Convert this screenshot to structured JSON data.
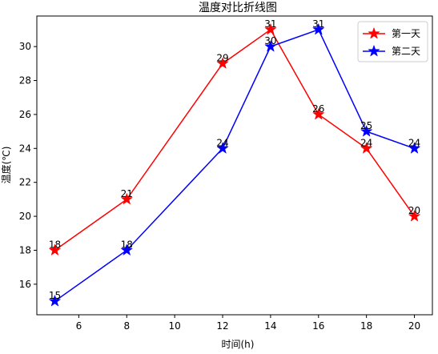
{
  "chart_data": {
    "type": "line",
    "title": "温度对比折线图",
    "xlabel": "时间(h)",
    "ylabel": "温度(℃)",
    "x": [
      5,
      8,
      12,
      14,
      16,
      18,
      20
    ],
    "xlim": [
      4.25,
      20.75
    ],
    "ylim": [
      14.2,
      31.8
    ],
    "xticks": [
      6,
      8,
      10,
      12,
      14,
      16,
      18,
      20
    ],
    "yticks": [
      16,
      18,
      20,
      22,
      24,
      26,
      28,
      30
    ],
    "grid": false,
    "legend_position": "top-right",
    "series": [
      {
        "name": "第一天",
        "color": "#ff0000",
        "marker": "star",
        "values": [
          18,
          21,
          29,
          31,
          26,
          24,
          20
        ]
      },
      {
        "name": "第二天",
        "color": "#0000ff",
        "marker": "star",
        "values": [
          15,
          18,
          24,
          30,
          31,
          25,
          24
        ]
      }
    ]
  }
}
